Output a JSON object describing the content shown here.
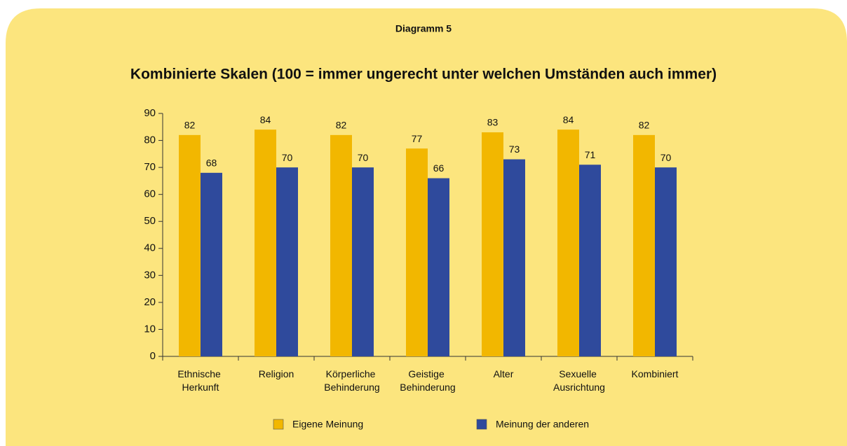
{
  "chart_data": {
    "type": "bar",
    "header": "Diagramm 5",
    "title": "Kombinierte Skalen (100 = immer ungerecht unter welchen Umständen auch immer)",
    "categories": [
      "Ethnische Herkunft",
      "Religion",
      "Körperliche Behinderung",
      "Geistige Behinderung",
      "Alter",
      "Sexuelle Ausrichtung",
      "Kombiniert"
    ],
    "series": [
      {
        "name": "Eigene Meinung",
        "color": "#f2b700",
        "values": [
          82,
          84,
          82,
          77,
          83,
          84,
          82
        ]
      },
      {
        "name": "Meinung der anderen",
        "color": "#2f4a9c",
        "values": [
          68,
          70,
          70,
          66,
          73,
          71,
          70
        ]
      }
    ],
    "ylim": [
      0,
      90
    ],
    "yticks": [
      0,
      10,
      20,
      30,
      40,
      50,
      60,
      70,
      80,
      90
    ],
    "grid": false,
    "legend": "bottom"
  }
}
